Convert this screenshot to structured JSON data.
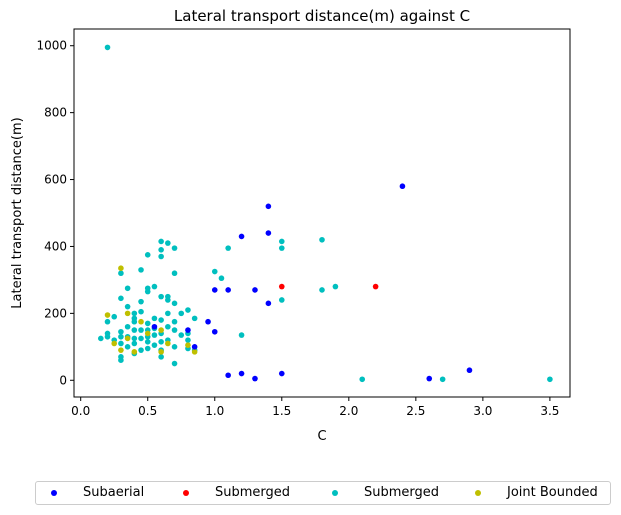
{
  "chart_data": {
    "type": "scatter",
    "title": "Lateral transport distance(m) against C",
    "xlabel": "C",
    "ylabel": "Lateral transport distance(m)",
    "xlim": [
      -0.05,
      3.65
    ],
    "ylim": [
      -50,
      1050
    ],
    "xticks": [
      "0.0",
      "0.5",
      "1.0",
      "1.5",
      "2.0",
      "2.5",
      "3.0",
      "3.5"
    ],
    "yticks": [
      "0",
      "200",
      "400",
      "600",
      "800",
      "1000"
    ],
    "xtick_values": [
      0,
      0.5,
      1.0,
      1.5,
      2.0,
      2.5,
      3.0,
      3.5
    ],
    "ytick_values": [
      0,
      200,
      400,
      600,
      800,
      1000
    ],
    "grid": false,
    "legend_position": "bottom",
    "series": [
      {
        "name": "Subaerial",
        "color": "#0000ff",
        "points": [
          [
            0.55,
            160
          ],
          [
            0.8,
            150
          ],
          [
            0.85,
            100
          ],
          [
            0.95,
            175
          ],
          [
            1.0,
            145
          ],
          [
            1.0,
            270
          ],
          [
            1.1,
            270
          ],
          [
            1.1,
            15
          ],
          [
            1.2,
            430
          ],
          [
            1.2,
            20
          ],
          [
            1.3,
            270
          ],
          [
            1.3,
            5
          ],
          [
            1.4,
            520
          ],
          [
            1.4,
            440
          ],
          [
            1.4,
            230
          ],
          [
            1.5,
            20
          ],
          [
            2.4,
            580
          ],
          [
            2.6,
            5
          ],
          [
            2.9,
            30
          ]
        ]
      },
      {
        "name": "Submerged",
        "color": "#ff0000",
        "points": [
          [
            1.5,
            280
          ],
          [
            2.2,
            280
          ]
        ]
      },
      {
        "name": "Submerged",
        "color": "#00bfbf",
        "points": [
          [
            0.2,
            995
          ],
          [
            0.15,
            125
          ],
          [
            0.2,
            130
          ],
          [
            0.2,
            140
          ],
          [
            0.2,
            175
          ],
          [
            0.25,
            120
          ],
          [
            0.25,
            190
          ],
          [
            0.3,
            60
          ],
          [
            0.3,
            70
          ],
          [
            0.3,
            110
          ],
          [
            0.3,
            130
          ],
          [
            0.3,
            145
          ],
          [
            0.3,
            245
          ],
          [
            0.3,
            320
          ],
          [
            0.35,
            100
          ],
          [
            0.35,
            130
          ],
          [
            0.35,
            160
          ],
          [
            0.35,
            220
          ],
          [
            0.35,
            275
          ],
          [
            0.4,
            80
          ],
          [
            0.4,
            110
          ],
          [
            0.4,
            125
          ],
          [
            0.4,
            150
          ],
          [
            0.4,
            175
          ],
          [
            0.4,
            185
          ],
          [
            0.4,
            200
          ],
          [
            0.45,
            90
          ],
          [
            0.45,
            125
          ],
          [
            0.45,
            150
          ],
          [
            0.45,
            205
          ],
          [
            0.45,
            235
          ],
          [
            0.45,
            330
          ],
          [
            0.5,
            95
          ],
          [
            0.5,
            115
          ],
          [
            0.5,
            130
          ],
          [
            0.5,
            150
          ],
          [
            0.5,
            170
          ],
          [
            0.5,
            265
          ],
          [
            0.5,
            275
          ],
          [
            0.5,
            375
          ],
          [
            0.55,
            105
          ],
          [
            0.55,
            135
          ],
          [
            0.55,
            155
          ],
          [
            0.55,
            185
          ],
          [
            0.55,
            280
          ],
          [
            0.6,
            70
          ],
          [
            0.6,
            90
          ],
          [
            0.6,
            115
          ],
          [
            0.6,
            140
          ],
          [
            0.6,
            180
          ],
          [
            0.6,
            250
          ],
          [
            0.6,
            370
          ],
          [
            0.6,
            390
          ],
          [
            0.6,
            415
          ],
          [
            0.65,
            120
          ],
          [
            0.65,
            160
          ],
          [
            0.65,
            200
          ],
          [
            0.65,
            240
          ],
          [
            0.65,
            250
          ],
          [
            0.65,
            410
          ],
          [
            0.7,
            50
          ],
          [
            0.7,
            100
          ],
          [
            0.7,
            150
          ],
          [
            0.7,
            175
          ],
          [
            0.7,
            230
          ],
          [
            0.7,
            320
          ],
          [
            0.7,
            395
          ],
          [
            0.75,
            135
          ],
          [
            0.75,
            200
          ],
          [
            0.8,
            95
          ],
          [
            0.8,
            120
          ],
          [
            0.8,
            140
          ],
          [
            0.8,
            210
          ],
          [
            0.85,
            90
          ],
          [
            0.85,
            185
          ],
          [
            1.0,
            325
          ],
          [
            1.05,
            305
          ],
          [
            1.1,
            395
          ],
          [
            1.2,
            135
          ],
          [
            1.5,
            240
          ],
          [
            1.5,
            395
          ],
          [
            1.5,
            415
          ],
          [
            1.8,
            270
          ],
          [
            1.8,
            420
          ],
          [
            1.9,
            280
          ],
          [
            2.1,
            3
          ],
          [
            2.7,
            3
          ],
          [
            3.5,
            3
          ]
        ]
      },
      {
        "name": "Joint Bounded",
        "color": "#bfbf00",
        "points": [
          [
            0.2,
            195
          ],
          [
            0.25,
            110
          ],
          [
            0.3,
            90
          ],
          [
            0.3,
            335
          ],
          [
            0.35,
            200
          ],
          [
            0.35,
            125
          ],
          [
            0.4,
            85
          ],
          [
            0.45,
            175
          ],
          [
            0.5,
            140
          ],
          [
            0.6,
            85
          ],
          [
            0.6,
            150
          ],
          [
            0.65,
            110
          ],
          [
            0.8,
            105
          ],
          [
            0.85,
            85
          ]
        ]
      }
    ]
  }
}
